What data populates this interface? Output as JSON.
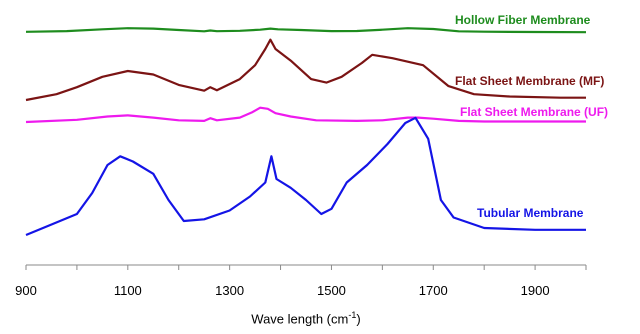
{
  "chart_data": {
    "type": "line",
    "title": "",
    "xlabel": "Wave length (cm",
    "xlabel_sup": "-1",
    "xlabel_suffix": ")",
    "ylabel": "",
    "xlim": [
      900,
      2000
    ],
    "x_ticks": [
      900,
      1100,
      1300,
      1500,
      1700,
      1900
    ],
    "y_ticks_shown": false,
    "grid": false,
    "legend": "inline labels at right end of each curve",
    "series": [
      {
        "name": "Hollow Fiber Membrane",
        "color": "#1e8c1e",
        "points": [
          [
            900,
            3.0
          ],
          [
            980,
            4.0
          ],
          [
            1050,
            6.5
          ],
          [
            1100,
            8.0
          ],
          [
            1150,
            7.5
          ],
          [
            1200,
            5.5
          ],
          [
            1250,
            3.8
          ],
          [
            1262,
            4.8
          ],
          [
            1275,
            3.9
          ],
          [
            1320,
            4.5
          ],
          [
            1360,
            6.0
          ],
          [
            1380,
            7.5
          ],
          [
            1395,
            6.5
          ],
          [
            1440,
            5.5
          ],
          [
            1500,
            4.0
          ],
          [
            1550,
            4.2
          ],
          [
            1600,
            6.0
          ],
          [
            1650,
            8.0
          ],
          [
            1700,
            7.0
          ],
          [
            1750,
            3.8
          ],
          [
            1800,
            3.2
          ],
          [
            1900,
            2.8
          ],
          [
            2000,
            2.5
          ]
        ]
      },
      {
        "name": "Flat Sheet Membrane (MF)",
        "color": "#7b1414",
        "points": [
          [
            900,
            0.0
          ],
          [
            960,
            2.5
          ],
          [
            1000,
            5.5
          ],
          [
            1050,
            10.0
          ],
          [
            1100,
            12.5
          ],
          [
            1150,
            11.0
          ],
          [
            1200,
            6.5
          ],
          [
            1250,
            4.0
          ],
          [
            1262,
            5.5
          ],
          [
            1275,
            4.2
          ],
          [
            1320,
            9.0
          ],
          [
            1350,
            15.0
          ],
          [
            1370,
            22.0
          ],
          [
            1380,
            26.0
          ],
          [
            1390,
            22.0
          ],
          [
            1420,
            17.0
          ],
          [
            1460,
            9.0
          ],
          [
            1490,
            7.5
          ],
          [
            1520,
            10.0
          ],
          [
            1560,
            16.0
          ],
          [
            1580,
            19.5
          ],
          [
            1620,
            18.0
          ],
          [
            1680,
            15.0
          ],
          [
            1730,
            6.0
          ],
          [
            1780,
            2.5
          ],
          [
            1850,
            1.5
          ],
          [
            1950,
            1.0
          ],
          [
            2000,
            1.0
          ]
        ]
      },
      {
        "name": "Flat Sheet Membrane (UF)",
        "color": "#ee1aee",
        "points": [
          [
            900,
            0.0
          ],
          [
            1000,
            2.0
          ],
          [
            1060,
            5.0
          ],
          [
            1100,
            6.0
          ],
          [
            1150,
            4.0
          ],
          [
            1200,
            1.5
          ],
          [
            1250,
            1.0
          ],
          [
            1262,
            3.5
          ],
          [
            1275,
            1.5
          ],
          [
            1320,
            4.0
          ],
          [
            1345,
            9.0
          ],
          [
            1360,
            13.0
          ],
          [
            1375,
            12.0
          ],
          [
            1390,
            8.0
          ],
          [
            1420,
            5.0
          ],
          [
            1470,
            1.5
          ],
          [
            1550,
            1.0
          ],
          [
            1600,
            1.5
          ],
          [
            1650,
            4.0
          ],
          [
            1670,
            4.0
          ],
          [
            1700,
            3.0
          ],
          [
            1750,
            1.0
          ],
          [
            1800,
            0.5
          ],
          [
            1900,
            0.5
          ],
          [
            2000,
            0.5
          ]
        ]
      },
      {
        "name": "Tubular Membrane",
        "color": "#1414e6",
        "points": [
          [
            900,
            0.0
          ],
          [
            950,
            6.0
          ],
          [
            1000,
            12.0
          ],
          [
            1030,
            24.0
          ],
          [
            1060,
            40.0
          ],
          [
            1085,
            45.0
          ],
          [
            1110,
            42.0
          ],
          [
            1150,
            35.0
          ],
          [
            1180,
            20.0
          ],
          [
            1210,
            8.0
          ],
          [
            1250,
            9.0
          ],
          [
            1300,
            14.0
          ],
          [
            1340,
            22.0
          ],
          [
            1370,
            30.0
          ],
          [
            1382,
            45.0
          ],
          [
            1392,
            32.0
          ],
          [
            1420,
            27.0
          ],
          [
            1450,
            20.0
          ],
          [
            1480,
            12.0
          ],
          [
            1500,
            15.0
          ],
          [
            1530,
            30.0
          ],
          [
            1570,
            40.0
          ],
          [
            1610,
            52.0
          ],
          [
            1645,
            64.0
          ],
          [
            1665,
            67.0
          ],
          [
            1690,
            55.0
          ],
          [
            1715,
            20.0
          ],
          [
            1740,
            10.0
          ],
          [
            1800,
            4.0
          ],
          [
            1900,
            3.0
          ],
          [
            2000,
            3.0
          ]
        ]
      }
    ]
  }
}
